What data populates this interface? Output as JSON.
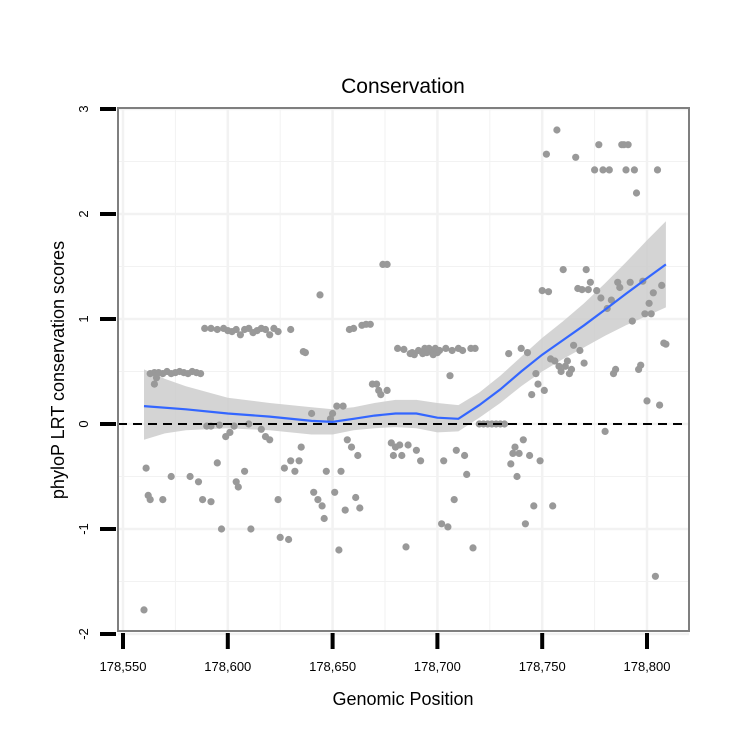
{
  "chart_data": {
    "type": "scatter",
    "title": "Conservation",
    "xlabel": "Genomic Position",
    "ylabel": "phyloP LRT conservation scores",
    "xlim": [
      178555,
      178820
    ],
    "ylim": [
      -2,
      3
    ],
    "x_ticks": [
      178550,
      178600,
      178650,
      178700,
      178750,
      178800
    ],
    "x_tick_labels": [
      "178,550",
      "178,600",
      "178,650",
      "178,700",
      "178,750",
      "178,800"
    ],
    "y_ticks": [
      -2,
      -1,
      0,
      1,
      2,
      3
    ],
    "y_tick_labels": [
      "-2",
      "-1",
      "0",
      "1",
      "2",
      "3"
    ],
    "grid": true,
    "reference_line": {
      "y": 0,
      "style": "dashed"
    },
    "colors": {
      "points": "#999999",
      "smooth": "#3366ff",
      "ribbon": "#cccccc",
      "panel_border": "#7f7f7f",
      "grid": "#f2f2f2"
    },
    "points": [
      {
        "x": 178560,
        "y": -1.77
      },
      {
        "x": 178561,
        "y": -0.42
      },
      {
        "x": 178562,
        "y": -0.68
      },
      {
        "x": 178563,
        "y": -0.72
      },
      {
        "x": 178563,
        "y": 0.48
      },
      {
        "x": 178565,
        "y": 0.49
      },
      {
        "x": 178567,
        "y": 0.49
      },
      {
        "x": 178569,
        "y": 0.48
      },
      {
        "x": 178571,
        "y": 0.5
      },
      {
        "x": 178573,
        "y": 0.48
      },
      {
        "x": 178575,
        "y": 0.49
      },
      {
        "x": 178577,
        "y": 0.5
      },
      {
        "x": 178579,
        "y": 0.49
      },
      {
        "x": 178581,
        "y": 0.48
      },
      {
        "x": 178583,
        "y": 0.5
      },
      {
        "x": 178585,
        "y": 0.49
      },
      {
        "x": 178587,
        "y": 0.48
      },
      {
        "x": 178565,
        "y": 0.38
      },
      {
        "x": 178566,
        "y": 0.44
      },
      {
        "x": 178569,
        "y": -0.72
      },
      {
        "x": 178573,
        "y": -0.5
      },
      {
        "x": 178582,
        "y": -0.5
      },
      {
        "x": 178586,
        "y": -0.55
      },
      {
        "x": 178588,
        "y": -0.72
      },
      {
        "x": 178592,
        "y": -0.74
      },
      {
        "x": 178595,
        "y": -0.37
      },
      {
        "x": 178597,
        "y": -1.0
      },
      {
        "x": 178599,
        "y": -0.12
      },
      {
        "x": 178601,
        "y": -0.08
      },
      {
        "x": 178604,
        "y": -0.55
      },
      {
        "x": 178605,
        "y": -0.6
      },
      {
        "x": 178608,
        "y": -0.45
      },
      {
        "x": 178611,
        "y": -1.0
      },
      {
        "x": 178589,
        "y": 0.91
      },
      {
        "x": 178592,
        "y": 0.91
      },
      {
        "x": 178595,
        "y": 0.9
      },
      {
        "x": 178598,
        "y": 0.91
      },
      {
        "x": 178600,
        "y": 0.89
      },
      {
        "x": 178602,
        "y": 0.88
      },
      {
        "x": 178604,
        "y": 0.9
      },
      {
        "x": 178606,
        "y": 0.85
      },
      {
        "x": 178608,
        "y": 0.9
      },
      {
        "x": 178610,
        "y": 0.91
      },
      {
        "x": 178612,
        "y": 0.87
      },
      {
        "x": 178614,
        "y": 0.89
      },
      {
        "x": 178616,
        "y": 0.91
      },
      {
        "x": 178618,
        "y": 0.9
      },
      {
        "x": 178620,
        "y": 0.85
      },
      {
        "x": 178622,
        "y": 0.91
      },
      {
        "x": 178624,
        "y": 0.88
      },
      {
        "x": 178630,
        "y": 0.9
      },
      {
        "x": 178590,
        "y": -0.02
      },
      {
        "x": 178592,
        "y": -0.02
      },
      {
        "x": 178596,
        "y": -0.01
      },
      {
        "x": 178603,
        "y": -0.02
      },
      {
        "x": 178610,
        "y": 0.0
      },
      {
        "x": 178616,
        "y": -0.05
      },
      {
        "x": 178618,
        "y": -0.12
      },
      {
        "x": 178620,
        "y": -0.15
      },
      {
        "x": 178624,
        "y": -0.72
      },
      {
        "x": 178625,
        "y": -1.08
      },
      {
        "x": 178627,
        "y": -0.42
      },
      {
        "x": 178629,
        "y": -1.1
      },
      {
        "x": 178630,
        "y": -0.35
      },
      {
        "x": 178632,
        "y": -0.45
      },
      {
        "x": 178634,
        "y": -0.35
      },
      {
        "x": 178635,
        "y": -0.22
      },
      {
        "x": 178636,
        "y": 0.69
      },
      {
        "x": 178637,
        "y": 0.68
      },
      {
        "x": 178640,
        "y": 0.1
      },
      {
        "x": 178641,
        "y": -0.65
      },
      {
        "x": 178643,
        "y": -0.72
      },
      {
        "x": 178644,
        "y": 1.23
      },
      {
        "x": 178645,
        "y": -0.78
      },
      {
        "x": 178646,
        "y": -0.9
      },
      {
        "x": 178647,
        "y": -0.45
      },
      {
        "x": 178649,
        "y": 0.05
      },
      {
        "x": 178650,
        "y": 0.1
      },
      {
        "x": 178651,
        "y": -0.65
      },
      {
        "x": 178652,
        "y": 0.17
      },
      {
        "x": 178653,
        "y": -1.2
      },
      {
        "x": 178654,
        "y": -0.45
      },
      {
        "x": 178655,
        "y": 0.17
      },
      {
        "x": 178656,
        "y": -0.82
      },
      {
        "x": 178657,
        "y": -0.15
      },
      {
        "x": 178658,
        "y": 0.9
      },
      {
        "x": 178659,
        "y": -0.22
      },
      {
        "x": 178660,
        "y": 0.91
      },
      {
        "x": 178661,
        "y": -0.7
      },
      {
        "x": 178662,
        "y": -0.3
      },
      {
        "x": 178663,
        "y": -0.8
      },
      {
        "x": 178664,
        "y": 0.94
      },
      {
        "x": 178666,
        "y": 0.95
      },
      {
        "x": 178668,
        "y": 0.95
      },
      {
        "x": 178669,
        "y": 0.38
      },
      {
        "x": 178671,
        "y": 0.38
      },
      {
        "x": 178672,
        "y": 0.32
      },
      {
        "x": 178673,
        "y": 0.28
      },
      {
        "x": 178674,
        "y": 1.52
      },
      {
        "x": 178676,
        "y": 1.52
      },
      {
        "x": 178676,
        "y": 0.32
      },
      {
        "x": 178678,
        "y": -0.18
      },
      {
        "x": 178679,
        "y": -0.3
      },
      {
        "x": 178680,
        "y": -0.22
      },
      {
        "x": 178681,
        "y": 0.72
      },
      {
        "x": 178682,
        "y": -0.2
      },
      {
        "x": 178683,
        "y": -0.3
      },
      {
        "x": 178684,
        "y": 0.71
      },
      {
        "x": 178685,
        "y": -1.17
      },
      {
        "x": 178686,
        "y": -0.2
      },
      {
        "x": 178687,
        "y": 0.67
      },
      {
        "x": 178688,
        "y": 0.68
      },
      {
        "x": 178689,
        "y": 0.66
      },
      {
        "x": 178690,
        "y": -0.25
      },
      {
        "x": 178691,
        "y": 0.7
      },
      {
        "x": 178692,
        "y": -0.35
      },
      {
        "x": 178693,
        "y": 0.67
      },
      {
        "x": 178694,
        "y": 0.72
      },
      {
        "x": 178695,
        "y": 0.68
      },
      {
        "x": 178696,
        "y": 0.72
      },
      {
        "x": 178697,
        "y": 0.7
      },
      {
        "x": 178698,
        "y": 0.66
      },
      {
        "x": 178699,
        "y": 0.72
      },
      {
        "x": 178700,
        "y": 0.68
      },
      {
        "x": 178701,
        "y": 0.7
      },
      {
        "x": 178702,
        "y": -0.95
      },
      {
        "x": 178703,
        "y": -0.35
      },
      {
        "x": 178704,
        "y": 0.72
      },
      {
        "x": 178705,
        "y": -0.98
      },
      {
        "x": 178706,
        "y": 0.46
      },
      {
        "x": 178707,
        "y": 0.7
      },
      {
        "x": 178708,
        "y": -0.72
      },
      {
        "x": 178709,
        "y": -0.25
      },
      {
        "x": 178710,
        "y": 0.72
      },
      {
        "x": 178712,
        "y": 0.7
      },
      {
        "x": 178713,
        "y": -0.3
      },
      {
        "x": 178714,
        "y": -0.48
      },
      {
        "x": 178716,
        "y": 0.72
      },
      {
        "x": 178717,
        "y": -1.18
      },
      {
        "x": 178718,
        "y": 0.72
      },
      {
        "x": 178720,
        "y": 0.0
      },
      {
        "x": 178722,
        "y": 0.0
      },
      {
        "x": 178724,
        "y": 0.0
      },
      {
        "x": 178726,
        "y": 0.0
      },
      {
        "x": 178728,
        "y": 0.0
      },
      {
        "x": 178730,
        "y": 0.0
      },
      {
        "x": 178732,
        "y": 0.0
      },
      {
        "x": 178734,
        "y": 0.67
      },
      {
        "x": 178735,
        "y": -0.38
      },
      {
        "x": 178736,
        "y": -0.28
      },
      {
        "x": 178737,
        "y": -0.22
      },
      {
        "x": 178738,
        "y": -0.5
      },
      {
        "x": 178739,
        "y": -0.28
      },
      {
        "x": 178740,
        "y": 0.72
      },
      {
        "x": 178741,
        "y": -0.15
      },
      {
        "x": 178742,
        "y": -0.95
      },
      {
        "x": 178743,
        "y": 0.68
      },
      {
        "x": 178744,
        "y": -0.3
      },
      {
        "x": 178745,
        "y": 0.28
      },
      {
        "x": 178746,
        "y": -0.78
      },
      {
        "x": 178747,
        "y": 0.48
      },
      {
        "x": 178748,
        "y": 0.38
      },
      {
        "x": 178749,
        "y": -0.35
      },
      {
        "x": 178750,
        "y": 1.27
      },
      {
        "x": 178751,
        "y": 0.32
      },
      {
        "x": 178752,
        "y": 2.57
      },
      {
        "x": 178753,
        "y": 1.26
      },
      {
        "x": 178754,
        "y": 0.62
      },
      {
        "x": 178755,
        "y": -0.78
      },
      {
        "x": 178756,
        "y": 0.6
      },
      {
        "x": 178757,
        "y": 2.8
      },
      {
        "x": 178758,
        "y": 0.55
      },
      {
        "x": 178759,
        "y": 0.5
      },
      {
        "x": 178760,
        "y": 1.47
      },
      {
        "x": 178761,
        "y": 0.55
      },
      {
        "x": 178762,
        "y": 0.6
      },
      {
        "x": 178763,
        "y": 0.48
      },
      {
        "x": 178764,
        "y": 0.52
      },
      {
        "x": 178765,
        "y": 0.75
      },
      {
        "x": 178766,
        "y": 2.54
      },
      {
        "x": 178767,
        "y": 1.29
      },
      {
        "x": 178768,
        "y": 0.7
      },
      {
        "x": 178769,
        "y": 1.28
      },
      {
        "x": 178770,
        "y": 0.58
      },
      {
        "x": 178771,
        "y": 1.47
      },
      {
        "x": 178772,
        "y": 1.28
      },
      {
        "x": 178773,
        "y": 1.35
      },
      {
        "x": 178775,
        "y": 2.42
      },
      {
        "x": 178776,
        "y": 1.27
      },
      {
        "x": 178777,
        "y": 2.66
      },
      {
        "x": 178778,
        "y": 1.2
      },
      {
        "x": 178779,
        "y": 2.42
      },
      {
        "x": 178780,
        "y": -0.07
      },
      {
        "x": 178781,
        "y": 1.1
      },
      {
        "x": 178782,
        "y": 2.42
      },
      {
        "x": 178783,
        "y": 1.18
      },
      {
        "x": 178784,
        "y": 0.48
      },
      {
        "x": 178785,
        "y": 0.52
      },
      {
        "x": 178786,
        "y": 1.35
      },
      {
        "x": 178787,
        "y": 1.3
      },
      {
        "x": 178788,
        "y": 2.66
      },
      {
        "x": 178789,
        "y": 2.66
      },
      {
        "x": 178790,
        "y": 2.42
      },
      {
        "x": 178791,
        "y": 2.66
      },
      {
        "x": 178792,
        "y": 1.35
      },
      {
        "x": 178793,
        "y": 0.98
      },
      {
        "x": 178794,
        "y": 2.42
      },
      {
        "x": 178795,
        "y": 2.2
      },
      {
        "x": 178796,
        "y": 0.52
      },
      {
        "x": 178797,
        "y": 0.56
      },
      {
        "x": 178798,
        "y": 1.36
      },
      {
        "x": 178799,
        "y": 1.05
      },
      {
        "x": 178800,
        "y": 0.22
      },
      {
        "x": 178801,
        "y": 1.15
      },
      {
        "x": 178802,
        "y": 1.05
      },
      {
        "x": 178803,
        "y": 1.25
      },
      {
        "x": 178804,
        "y": -1.45
      },
      {
        "x": 178805,
        "y": 2.42
      },
      {
        "x": 178806,
        "y": 0.18
      },
      {
        "x": 178807,
        "y": 1.32
      },
      {
        "x": 178808,
        "y": 0.77
      },
      {
        "x": 178809,
        "y": 0.76
      }
    ],
    "smooth": [
      {
        "x": 178560,
        "y": 0.17
      },
      {
        "x": 178580,
        "y": 0.14
      },
      {
        "x": 178600,
        "y": 0.1
      },
      {
        "x": 178620,
        "y": 0.07
      },
      {
        "x": 178640,
        "y": 0.03
      },
      {
        "x": 178650,
        "y": 0.02
      },
      {
        "x": 178660,
        "y": 0.05
      },
      {
        "x": 178670,
        "y": 0.08
      },
      {
        "x": 178680,
        "y": 0.1
      },
      {
        "x": 178690,
        "y": 0.1
      },
      {
        "x": 178700,
        "y": 0.06
      },
      {
        "x": 178710,
        "y": 0.05
      },
      {
        "x": 178720,
        "y": 0.18
      },
      {
        "x": 178730,
        "y": 0.33
      },
      {
        "x": 178740,
        "y": 0.5
      },
      {
        "x": 178750,
        "y": 0.66
      },
      {
        "x": 178760,
        "y": 0.8
      },
      {
        "x": 178770,
        "y": 0.94
      },
      {
        "x": 178780,
        "y": 1.09
      },
      {
        "x": 178790,
        "y": 1.24
      },
      {
        "x": 178800,
        "y": 1.39
      },
      {
        "x": 178809,
        "y": 1.52
      }
    ],
    "ribbon": [
      {
        "x": 178560,
        "y_lo": -0.15,
        "y_hi": 0.52
      },
      {
        "x": 178570,
        "y_lo": -0.09,
        "y_hi": 0.43
      },
      {
        "x": 178580,
        "y_lo": -0.06,
        "y_hi": 0.36
      },
      {
        "x": 178600,
        "y_lo": -0.04,
        "y_hi": 0.25
      },
      {
        "x": 178620,
        "y_lo": -0.06,
        "y_hi": 0.2
      },
      {
        "x": 178640,
        "y_lo": -0.1,
        "y_hi": 0.16
      },
      {
        "x": 178650,
        "y_lo": -0.1,
        "y_hi": 0.14
      },
      {
        "x": 178660,
        "y_lo": -0.06,
        "y_hi": 0.16
      },
      {
        "x": 178670,
        "y_lo": -0.04,
        "y_hi": 0.2
      },
      {
        "x": 178680,
        "y_lo": -0.03,
        "y_hi": 0.23
      },
      {
        "x": 178690,
        "y_lo": -0.04,
        "y_hi": 0.23
      },
      {
        "x": 178700,
        "y_lo": -0.08,
        "y_hi": 0.2
      },
      {
        "x": 178710,
        "y_lo": -0.07,
        "y_hi": 0.18
      },
      {
        "x": 178720,
        "y_lo": 0.06,
        "y_hi": 0.3
      },
      {
        "x": 178730,
        "y_lo": 0.2,
        "y_hi": 0.46
      },
      {
        "x": 178740,
        "y_lo": 0.36,
        "y_hi": 0.64
      },
      {
        "x": 178750,
        "y_lo": 0.5,
        "y_hi": 0.82
      },
      {
        "x": 178760,
        "y_lo": 0.62,
        "y_hi": 0.98
      },
      {
        "x": 178770,
        "y_lo": 0.73,
        "y_hi": 1.15
      },
      {
        "x": 178780,
        "y_lo": 0.84,
        "y_hi": 1.34
      },
      {
        "x": 178790,
        "y_lo": 0.94,
        "y_hi": 1.54
      },
      {
        "x": 178800,
        "y_lo": 1.03,
        "y_hi": 1.75
      },
      {
        "x": 178809,
        "y_lo": 1.11,
        "y_hi": 1.93
      }
    ]
  }
}
